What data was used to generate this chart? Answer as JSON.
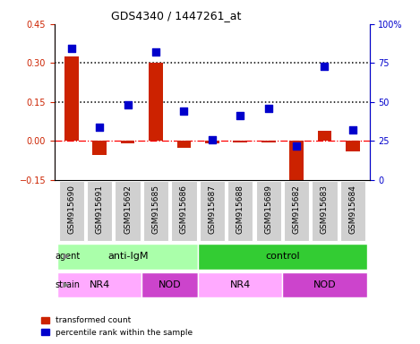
{
  "title": "GDS4340 / 1447261_at",
  "samples": [
    "GSM915690",
    "GSM915691",
    "GSM915692",
    "GSM915685",
    "GSM915686",
    "GSM915687",
    "GSM915688",
    "GSM915689",
    "GSM915682",
    "GSM915683",
    "GSM915684"
  ],
  "red_values": [
    0.325,
    -0.055,
    -0.01,
    0.302,
    -0.028,
    -0.008,
    -0.005,
    -0.005,
    -0.175,
    0.04,
    -0.04
  ],
  "blue_values": [
    84.5,
    34.0,
    48.0,
    82.0,
    44.0,
    26.0,
    41.0,
    46.0,
    22.0,
    73.0,
    32.0
  ],
  "ylim_left": [
    -0.15,
    0.45
  ],
  "ylim_right": [
    0,
    100
  ],
  "yticks_left": [
    -0.15,
    0,
    0.15,
    0.3,
    0.45
  ],
  "yticks_right": [
    0,
    25,
    50,
    75,
    100
  ],
  "agent_groups": [
    {
      "label": "anti-IgM",
      "start": 0,
      "end": 5,
      "color": "#aaffaa"
    },
    {
      "label": "control",
      "start": 5,
      "end": 11,
      "color": "#33cc33"
    }
  ],
  "strain_groups": [
    {
      "label": "NR4",
      "start": 0,
      "end": 3,
      "color": "#ffaaff"
    },
    {
      "label": "NOD",
      "start": 3,
      "end": 5,
      "color": "#cc44cc"
    },
    {
      "label": "NR4",
      "start": 5,
      "end": 8,
      "color": "#ffaaff"
    },
    {
      "label": "NOD",
      "start": 8,
      "end": 11,
      "color": "#cc44cc"
    }
  ],
  "bar_color": "#cc2200",
  "dot_color": "#0000cc",
  "bar_width": 0.5,
  "dot_size": 40,
  "legend_red": "transformed count",
  "legend_blue": "percentile rank within the sample",
  "ylabel_left_color": "#cc2200",
  "ylabel_right_color": "#0000cc"
}
